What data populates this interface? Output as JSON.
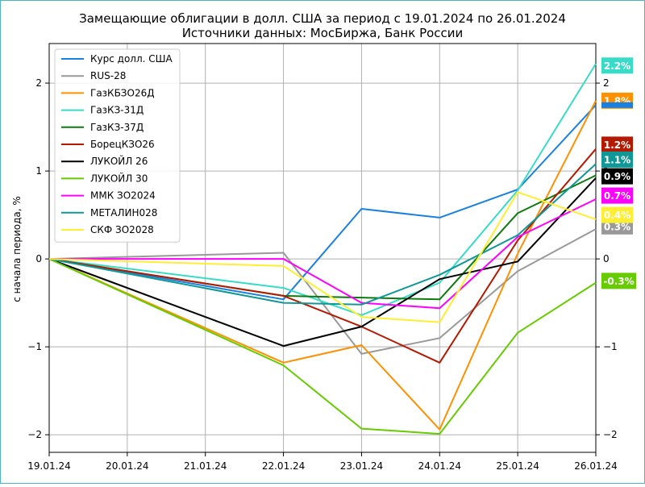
{
  "chart_data": {
    "type": "line",
    "title": "Замещающие облигации в долл. США за период с 19.01.2024 по 26.01.2024",
    "subtitle": "Источники данных: МосБиржа, Банк России",
    "ylabel": "с начала периода, %",
    "xlabel": "",
    "x": [
      "19.01.24",
      "20.01.24",
      "21.01.24",
      "22.01.24",
      "23.01.24",
      "24.01.24",
      "25.01.24",
      "26.01.24"
    ],
    "ylim": [
      -2.2,
      2.45
    ],
    "yticks": [
      -2,
      -1,
      0,
      1,
      2
    ],
    "ytick_labels": [
      "−2",
      "−1",
      "0",
      "1",
      "2"
    ],
    "grid": true,
    "legend_position": "top-left",
    "series": [
      {
        "name": "Курс долл. США",
        "color": "#1a80e0",
        "points": [
          [
            0,
            0
          ],
          [
            3,
            -0.46
          ],
          [
            4,
            0.57
          ],
          [
            5,
            0.47
          ],
          [
            6,
            0.79
          ],
          [
            7,
            1.75
          ]
        ]
      },
      {
        "name": "RUS-28",
        "color": "#999999",
        "points": [
          [
            0,
            0
          ],
          [
            3,
            0.07
          ],
          [
            4,
            -1.08
          ],
          [
            5,
            -0.9
          ],
          [
            6,
            -0.14
          ],
          [
            7,
            0.34
          ]
        ]
      },
      {
        "name": "ГазКБЗО26Д",
        "color": "#ff9000",
        "points": [
          [
            0,
            0
          ],
          [
            3,
            -1.18
          ],
          [
            4,
            -0.98
          ],
          [
            5,
            -1.94
          ],
          [
            6,
            0.06
          ],
          [
            7,
            1.8
          ]
        ]
      },
      {
        "name": "ГазКЗ-31Д",
        "color": "#36dcc8",
        "points": [
          [
            0,
            0
          ],
          [
            3,
            -0.33
          ],
          [
            4,
            -0.64
          ],
          [
            5,
            -0.27
          ],
          [
            6,
            0.78
          ],
          [
            7,
            2.22
          ]
        ]
      },
      {
        "name": "ГазКЗ-37Д",
        "color": "#0f7a0f",
        "points": [
          [
            0,
            0
          ],
          [
            3,
            -0.42
          ],
          [
            4,
            -0.44
          ],
          [
            5,
            -0.46
          ],
          [
            6,
            0.52
          ],
          [
            7,
            0.95
          ]
        ]
      },
      {
        "name": "БорецКЗО26",
        "color": "#b51a00",
        "points": [
          [
            0,
            0
          ],
          [
            3,
            -0.42
          ],
          [
            4,
            -0.77
          ],
          [
            5,
            -1.18
          ],
          [
            6,
            0.21
          ],
          [
            7,
            1.25
          ]
        ]
      },
      {
        "name": "ЛУКОЙЛ 26",
        "color": "#000000",
        "points": [
          [
            0,
            0
          ],
          [
            3,
            -0.99
          ],
          [
            4,
            -0.77
          ],
          [
            5,
            -0.23
          ],
          [
            6,
            -0.03
          ],
          [
            7,
            0.92
          ]
        ]
      },
      {
        "name": "ЛУКОЙЛ 30",
        "color": "#66cc00",
        "points": [
          [
            0,
            0
          ],
          [
            3,
            -1.21
          ],
          [
            4,
            -1.93
          ],
          [
            5,
            -1.99
          ],
          [
            6,
            -0.84
          ],
          [
            7,
            -0.27
          ]
        ]
      },
      {
        "name": "ММК ЗО2024",
        "color": "#ff00ff",
        "points": [
          [
            0,
            0
          ],
          [
            3,
            0.0
          ],
          [
            4,
            -0.5
          ],
          [
            5,
            -0.56
          ],
          [
            6,
            0.25
          ],
          [
            7,
            0.68
          ]
        ]
      },
      {
        "name": "МЕТАЛИН028",
        "color": "#109898",
        "points": [
          [
            0,
            0
          ],
          [
            3,
            -0.5
          ],
          [
            4,
            -0.52
          ],
          [
            5,
            -0.18
          ],
          [
            6,
            0.27
          ],
          [
            7,
            1.08
          ]
        ]
      },
      {
        "name": "СКФ ЗО2028",
        "color": "#ffee33",
        "points": [
          [
            0,
            0
          ],
          [
            3,
            -0.08
          ],
          [
            4,
            -0.66
          ],
          [
            5,
            -0.72
          ],
          [
            6,
            0.76
          ],
          [
            7,
            0.45
          ]
        ]
      }
    ],
    "end_labels": [
      {
        "text": "2.2%",
        "color": "#36dcc8",
        "value": 2.2
      },
      {
        "text": "1.8%",
        "color": "#ff9000",
        "value": 1.8
      },
      {
        "text": "",
        "color": "#1a80e0",
        "value": 1.75
      },
      {
        "text": "1.2%",
        "color": "#b51a00",
        "value": 1.3
      },
      {
        "text": "1.1%",
        "color": "#109898",
        "value": 1.13
      },
      {
        "text": "0.9%",
        "color": "#000000",
        "value": 0.94
      },
      {
        "text": "0.7%",
        "color": "#ff00ff",
        "value": 0.72
      },
      {
        "text": "0.3%",
        "color": "#999999",
        "value": 0.37
      },
      {
        "text": "0.4%",
        "color": "#ffee33",
        "value": 0.5
      },
      {
        "text": "-0.3%",
        "color": "#66cc00",
        "value": -0.25
      }
    ]
  }
}
